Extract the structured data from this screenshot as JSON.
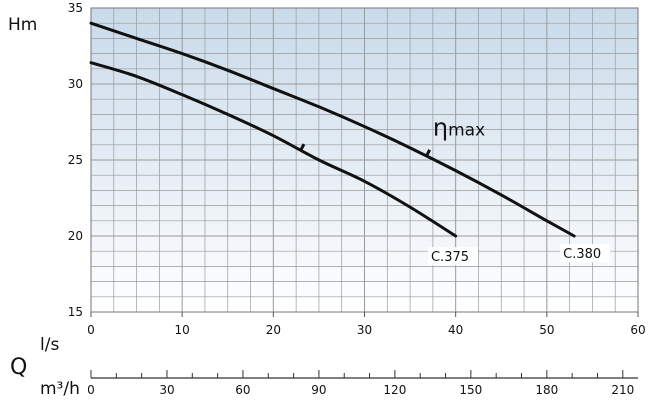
{
  "chart_data": {
    "type": "line",
    "y_label": "Hm",
    "x_label_top": "l/s",
    "x_label_q": "Q",
    "x_label_bottom": "m³/h",
    "xlim": [
      0,
      60
    ],
    "ylim": [
      15,
      35
    ],
    "x_ticks": [
      "0",
      "10",
      "20",
      "30",
      "40",
      "50",
      "60"
    ],
    "y_ticks": [
      "15",
      "20",
      "25",
      "30",
      "35"
    ],
    "x_ticks_bottom": [
      "0",
      "30",
      "60",
      "90",
      "120",
      "150",
      "180",
      "210"
    ],
    "x_bottom_max": 216,
    "grid": true,
    "colors": {
      "grid": "#9a9a9a",
      "fill_top": "#c9daea",
      "fill_bottom": "#ffffff",
      "curve": "#111111"
    },
    "efficiency_label": {
      "symbol": "η",
      "text": "max",
      "x": 37.5,
      "y": 26.6
    },
    "series": [
      {
        "name": "C.380",
        "x": [
          0,
          5,
          10,
          15,
          20,
          25,
          30,
          35,
          40,
          45,
          50,
          53
        ],
        "y": [
          34.0,
          33.0,
          32.0,
          30.9,
          29.7,
          28.5,
          27.2,
          25.8,
          24.3,
          22.7,
          21.0,
          20.0
        ],
        "efficiency_mark_x": 36.8,
        "label_x": 53,
        "label_y": 19.2
      },
      {
        "name": "C.375",
        "x": [
          0,
          5,
          10,
          15,
          20,
          25,
          30,
          35,
          40
        ],
        "y": [
          31.4,
          30.5,
          29.3,
          28.0,
          26.6,
          25.0,
          23.6,
          21.9,
          20.0
        ],
        "efficiency_mark_x": 23.0,
        "label_x": 38.5,
        "label_y": 19.0
      }
    ]
  }
}
